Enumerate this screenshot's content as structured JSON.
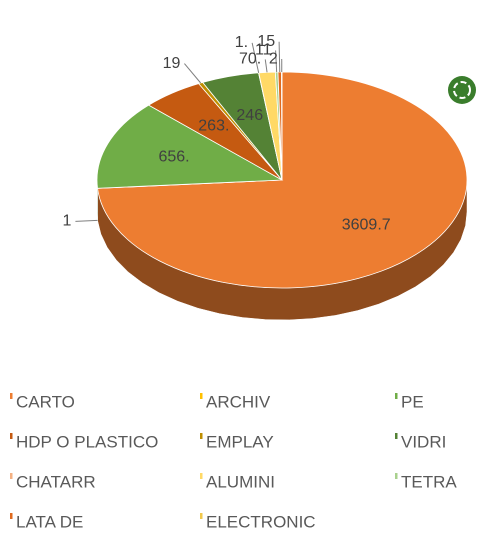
{
  "chart_data": {
    "type": "pie",
    "categories": [
      "CARTO",
      "ARCHIV",
      "PE",
      "HDP O PLASTICO",
      "EMPLAY",
      "VIDRI",
      "CHATARR",
      "ALUMINI",
      "TETRA",
      "LATA DE",
      "ELECTRONIC"
    ],
    "values": [
      3609.7,
      1,
      656,
      263,
      19,
      246,
      1,
      70,
      11,
      15,
      2
    ],
    "value_labels": [
      "3609.7",
      "1",
      "656.",
      "263.",
      "19",
      "246",
      "1.",
      "70.",
      "11",
      "15",
      "2"
    ],
    "colors": [
      "#ED7D31",
      "#FFC000",
      "#70AD47",
      "#C55A11",
      "#BF8F00",
      "#548235",
      "#F4B183",
      "#FFD966",
      "#A9D18E",
      "#E06A1E",
      "#F2C94C"
    ],
    "legend": "bottom"
  }
}
